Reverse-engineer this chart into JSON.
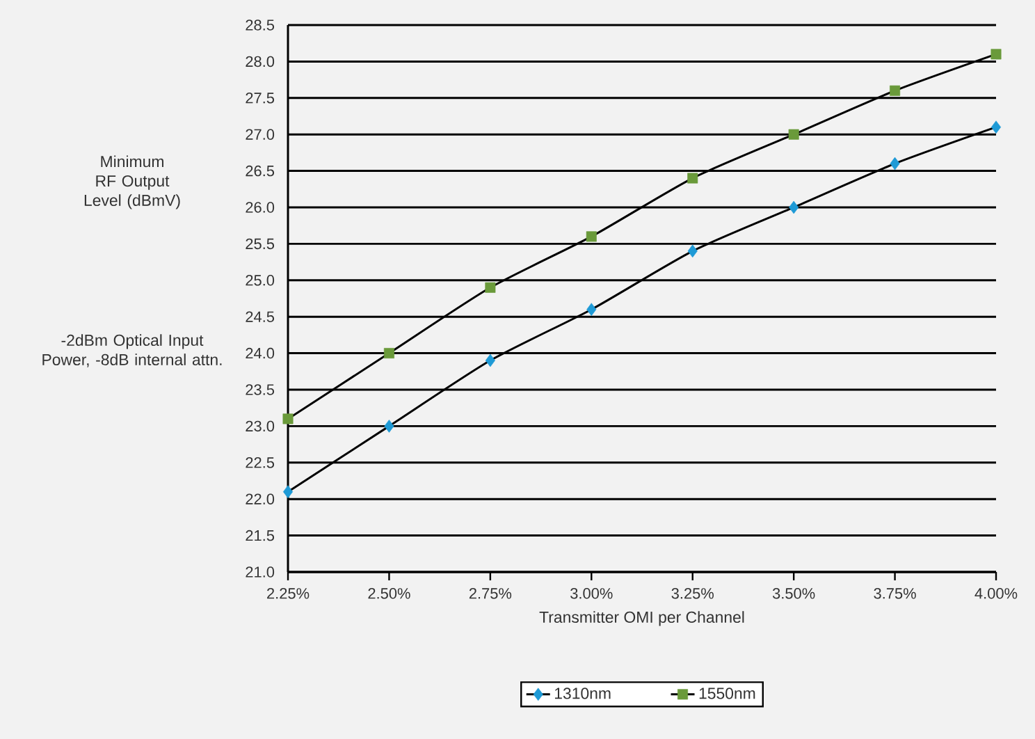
{
  "chart_data": {
    "type": "line",
    "xlabel": "Transmitter OMI per Channel",
    "ylabel": "Minimum RF Output Level (dBmV)",
    "annotations": [
      "-2dBm Optical Input Power, -8dB internal attn."
    ],
    "x": [
      2.25,
      2.5,
      2.75,
      3.0,
      3.25,
      3.5,
      3.75,
      4.0
    ],
    "series": [
      {
        "name": "1310nm",
        "color": "#1e9ad6",
        "marker": "diamond",
        "values": [
          22.1,
          23.0,
          23.9,
          24.6,
          25.4,
          26.0,
          26.6,
          27.1
        ]
      },
      {
        "name": "1550nm",
        "color": "#6a9a3a",
        "marker": "square",
        "values": [
          23.1,
          24.0,
          24.9,
          25.6,
          26.4,
          27.0,
          27.6,
          28.1
        ]
      }
    ],
    "xlim": [
      2.25,
      4.0
    ],
    "xticks": [
      {
        "value": 2.25,
        "label": "2.25%"
      },
      {
        "value": 2.5,
        "label": "2.50%"
      },
      {
        "value": 2.75,
        "label": "2.75%"
      },
      {
        "value": 3.0,
        "label": "3.00%"
      },
      {
        "value": 3.25,
        "label": "3.25%"
      },
      {
        "value": 3.5,
        "label": "3.50%"
      },
      {
        "value": 3.75,
        "label": "3.75%"
      },
      {
        "value": 4.0,
        "label": "4.00%"
      }
    ],
    "ylim": [
      21,
      28.5
    ],
    "yticks": [
      {
        "value": 21,
        "label": "21.0"
      },
      21.5,
      {
        "value": 22,
        "label": "22.0"
      },
      22.5,
      {
        "value": 23,
        "label": "23.0"
      },
      23.5,
      {
        "value": 24,
        "label": "24.0"
      },
      24.5,
      {
        "value": 25,
        "label": "25.0"
      },
      25.5,
      {
        "value": 26,
        "label": "26.0"
      },
      26.5,
      {
        "value": 27,
        "label": "27.0"
      },
      27.5,
      {
        "value": 28,
        "label": "28.0"
      },
      28.5
    ],
    "grid": "y",
    "legend": "bottom",
    "line_style": "solid"
  }
}
